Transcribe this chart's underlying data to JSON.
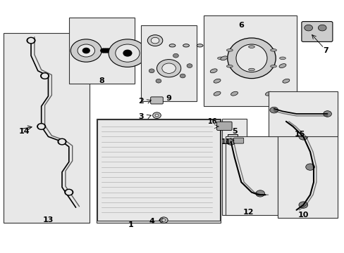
{
  "bg_color": "#ffffff",
  "diagram_bg": "#e8e8e8",
  "line_color": "#000000",
  "font_size_label": 8,
  "font_size_num": 9,
  "title": ""
}
